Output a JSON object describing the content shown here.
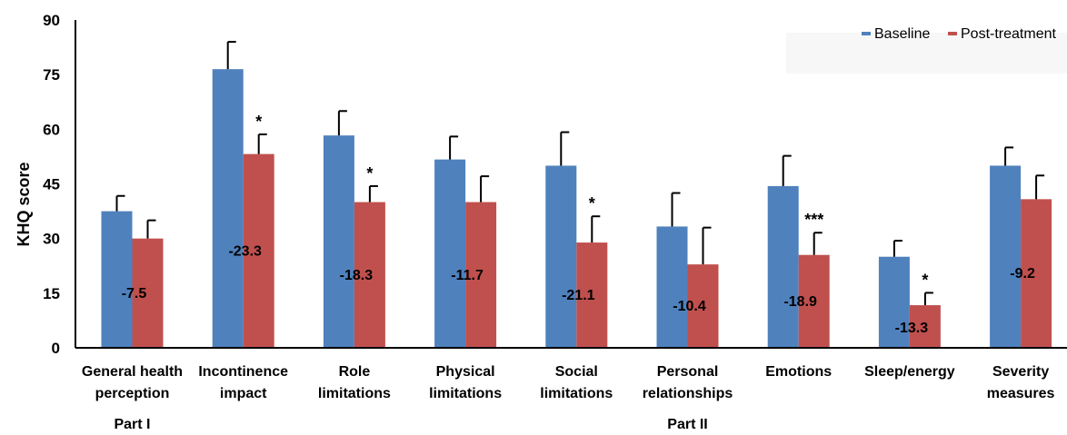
{
  "chart_data": {
    "type": "bar",
    "ylabel": "KHQ score",
    "ylim": [
      0,
      90
    ],
    "yticks": [
      "0",
      "15",
      "30",
      "45",
      "60",
      "75",
      "90"
    ],
    "categories": [
      [
        "General health",
        "perception"
      ],
      [
        "Incontinence",
        "impact"
      ],
      [
        "Role",
        "limitations"
      ],
      [
        "Physical",
        "limitations"
      ],
      [
        "Social",
        "limitations"
      ],
      [
        "Personal",
        "relationships"
      ],
      [
        "Emotions"
      ],
      [
        "Sleep/energy"
      ],
      [
        "Severity",
        "measures"
      ]
    ],
    "series": [
      {
        "name": "Baseline",
        "color": "#4f81bd",
        "values": [
          37.5,
          76.5,
          58.3,
          51.7,
          50.0,
          33.3,
          44.4,
          25.0,
          50.0
        ],
        "error": [
          4.2,
          7.5,
          6.7,
          6.3,
          9.2,
          9.2,
          8.3,
          4.4,
          5.0
        ]
      },
      {
        "name": "Post-treatment",
        "color": "#c0504d",
        "values": [
          30.0,
          53.2,
          40.0,
          40.0,
          28.9,
          22.9,
          25.5,
          11.7,
          40.8
        ],
        "error": [
          5.0,
          5.4,
          4.4,
          7.1,
          7.2,
          10.1,
          6.1,
          3.4,
          6.5
        ]
      }
    ],
    "differences": [
      "-7.5",
      "-23.3",
      "-18.3",
      "-11.7",
      "-21.1",
      "-10.4",
      "-18.9",
      "-13.3",
      "-9.2"
    ],
    "significance": [
      "",
      "*",
      "*",
      "",
      "*",
      "",
      "***",
      "*",
      ""
    ],
    "groups": [
      {
        "label": "Part I",
        "category_index": 0
      },
      {
        "label": "Part II",
        "category_index": 5
      }
    ],
    "legend": {
      "position": "top-right",
      "labels": [
        "Baseline",
        "Post-treatment"
      ]
    }
  }
}
